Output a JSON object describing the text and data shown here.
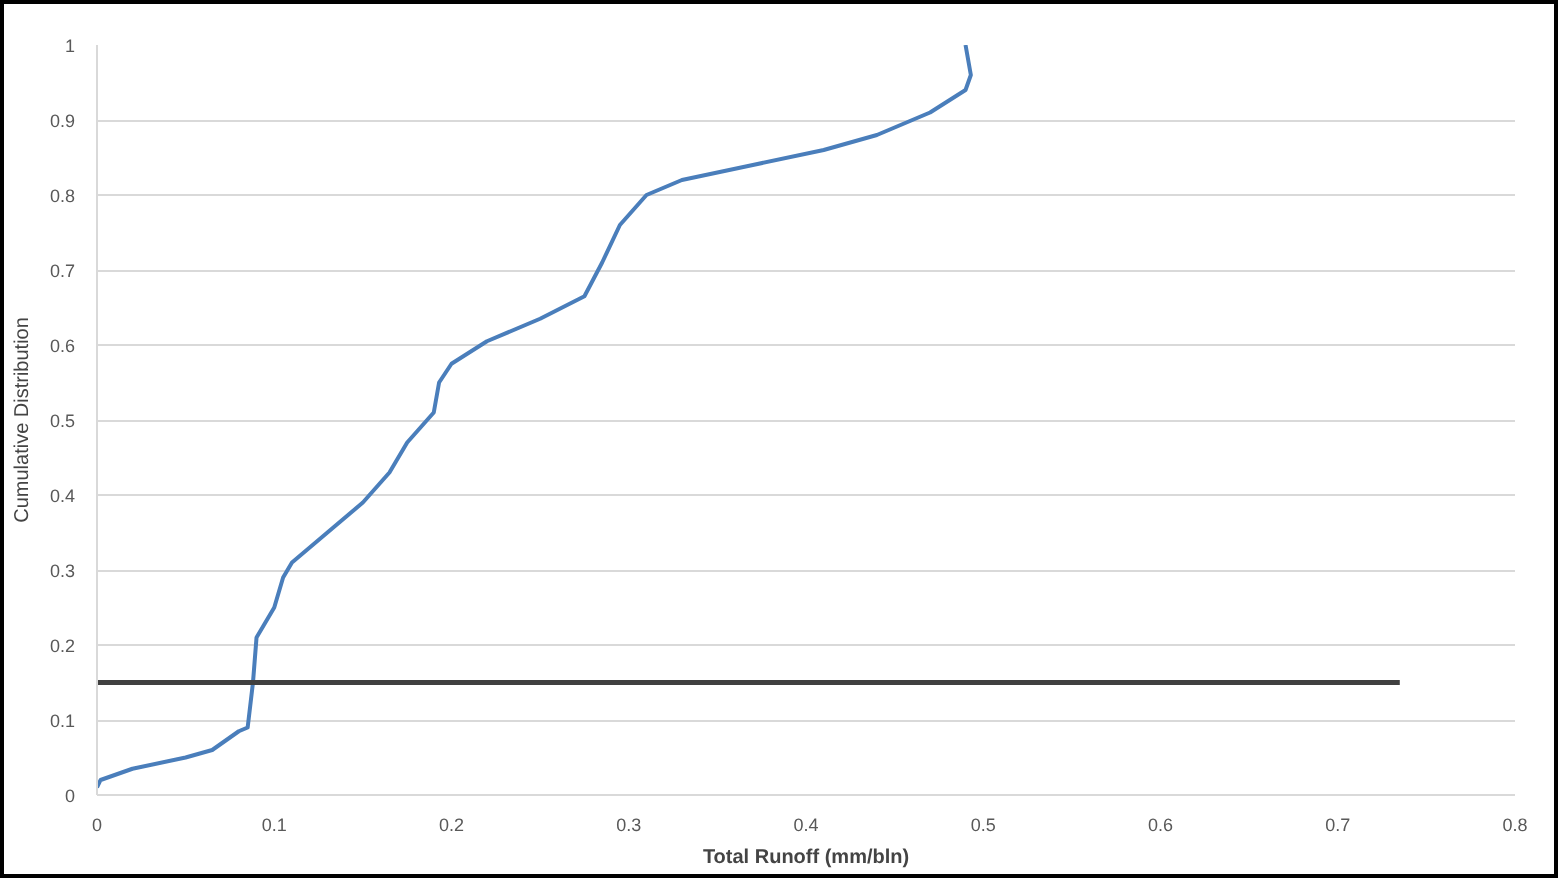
{
  "chart_data": {
    "type": "line",
    "xlabel": "Total Runoff (mm/bln)",
    "ylabel": "Cumulative Distribution",
    "xlim": [
      0,
      0.8
    ],
    "xticks": [
      0,
      0.1,
      0.2,
      0.3,
      0.4,
      0.5,
      0.6,
      0.7,
      0.8
    ],
    "ylim": [
      0,
      1
    ],
    "yticks": [
      0,
      0.1,
      0.2,
      0.3,
      0.4,
      0.5,
      0.6,
      0.7,
      0.8,
      0.9,
      1
    ],
    "grid": "y",
    "marker": "none",
    "line_style": "solid",
    "series": [
      {
        "color": "#4a7ebb",
        "x": [
          0,
          0.002,
          0.02,
          0.05,
          0.065,
          0.08,
          0.085,
          0.088,
          0.09,
          0.1,
          0.105,
          0.11,
          0.13,
          0.15,
          0.165,
          0.175,
          0.19,
          0.193,
          0.2,
          0.22,
          0.25,
          0.275,
          0.285,
          0.295,
          0.31,
          0.33,
          0.37,
          0.41,
          0.44,
          0.47,
          0.49,
          0.493,
          0.49
        ],
        "values": [
          0.01,
          0.02,
          0.035,
          0.05,
          0.06,
          0.085,
          0.09,
          0.15,
          0.21,
          0.25,
          0.29,
          0.31,
          0.35,
          0.39,
          0.43,
          0.47,
          0.51,
          0.55,
          0.575,
          0.605,
          0.635,
          0.665,
          0.71,
          0.76,
          0.8,
          0.82,
          0.84,
          0.86,
          0.88,
          0.91,
          0.94,
          0.96,
          1.0
        ]
      },
      {
        "color": "#404040",
        "x": [
          0,
          0.735
        ],
        "values": [
          0.15,
          0.15
        ]
      }
    ]
  }
}
